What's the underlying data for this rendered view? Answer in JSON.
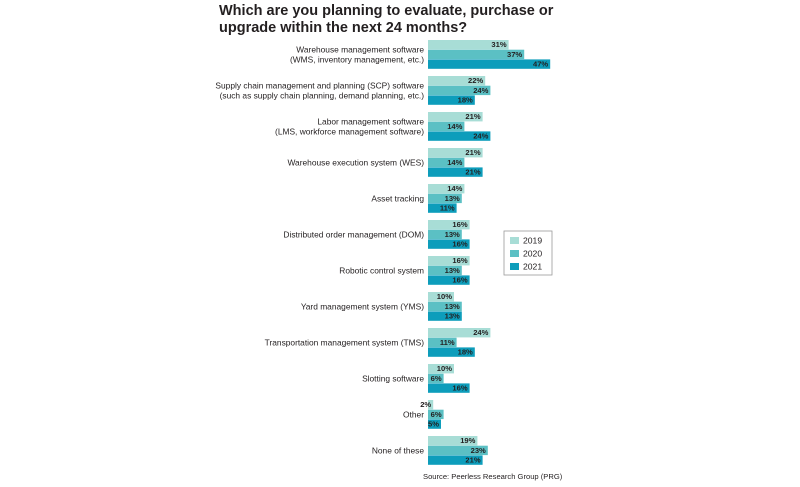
{
  "chart_data": {
    "type": "bar",
    "orientation": "horizontal",
    "title": "Which are you planning to evaluate, purchase or upgrade within the next 24 months?",
    "categories": [
      [
        "Warehouse management software",
        "(WMS, inventory management, etc.)"
      ],
      [
        "Supply chain management and planning (SCP) software",
        "(such as supply chain planning, demand planning, etc.)"
      ],
      [
        "Labor management software",
        "(LMS, workforce management software)"
      ],
      [
        "Warehouse execution system (WES)"
      ],
      [
        "Asset tracking"
      ],
      [
        "Distributed order management (DOM)"
      ],
      [
        "Robotic control system"
      ],
      [
        "Yard management system (YMS)"
      ],
      [
        "Transportation management system (TMS)"
      ],
      [
        "Slotting software"
      ],
      [
        "Other"
      ],
      [
        "None of these"
      ]
    ],
    "series": [
      {
        "name": "2019",
        "color": "#a8ddd6",
        "values": [
          31,
          22,
          21,
          21,
          14,
          16,
          16,
          10,
          24,
          10,
          2,
          19
        ]
      },
      {
        "name": "2020",
        "color": "#5bc0c4",
        "values": [
          37,
          24,
          14,
          14,
          13,
          13,
          13,
          13,
          11,
          6,
          6,
          23
        ]
      },
      {
        "name": "2021",
        "color": "#0d9dbb",
        "values": [
          47,
          18,
          24,
          21,
          11,
          16,
          16,
          13,
          18,
          16,
          5,
          21
        ]
      }
    ],
    "value_suffix": "%",
    "legend_position": "right",
    "grid": false,
    "source": "Source: Peerless Research Group (PRG)"
  }
}
